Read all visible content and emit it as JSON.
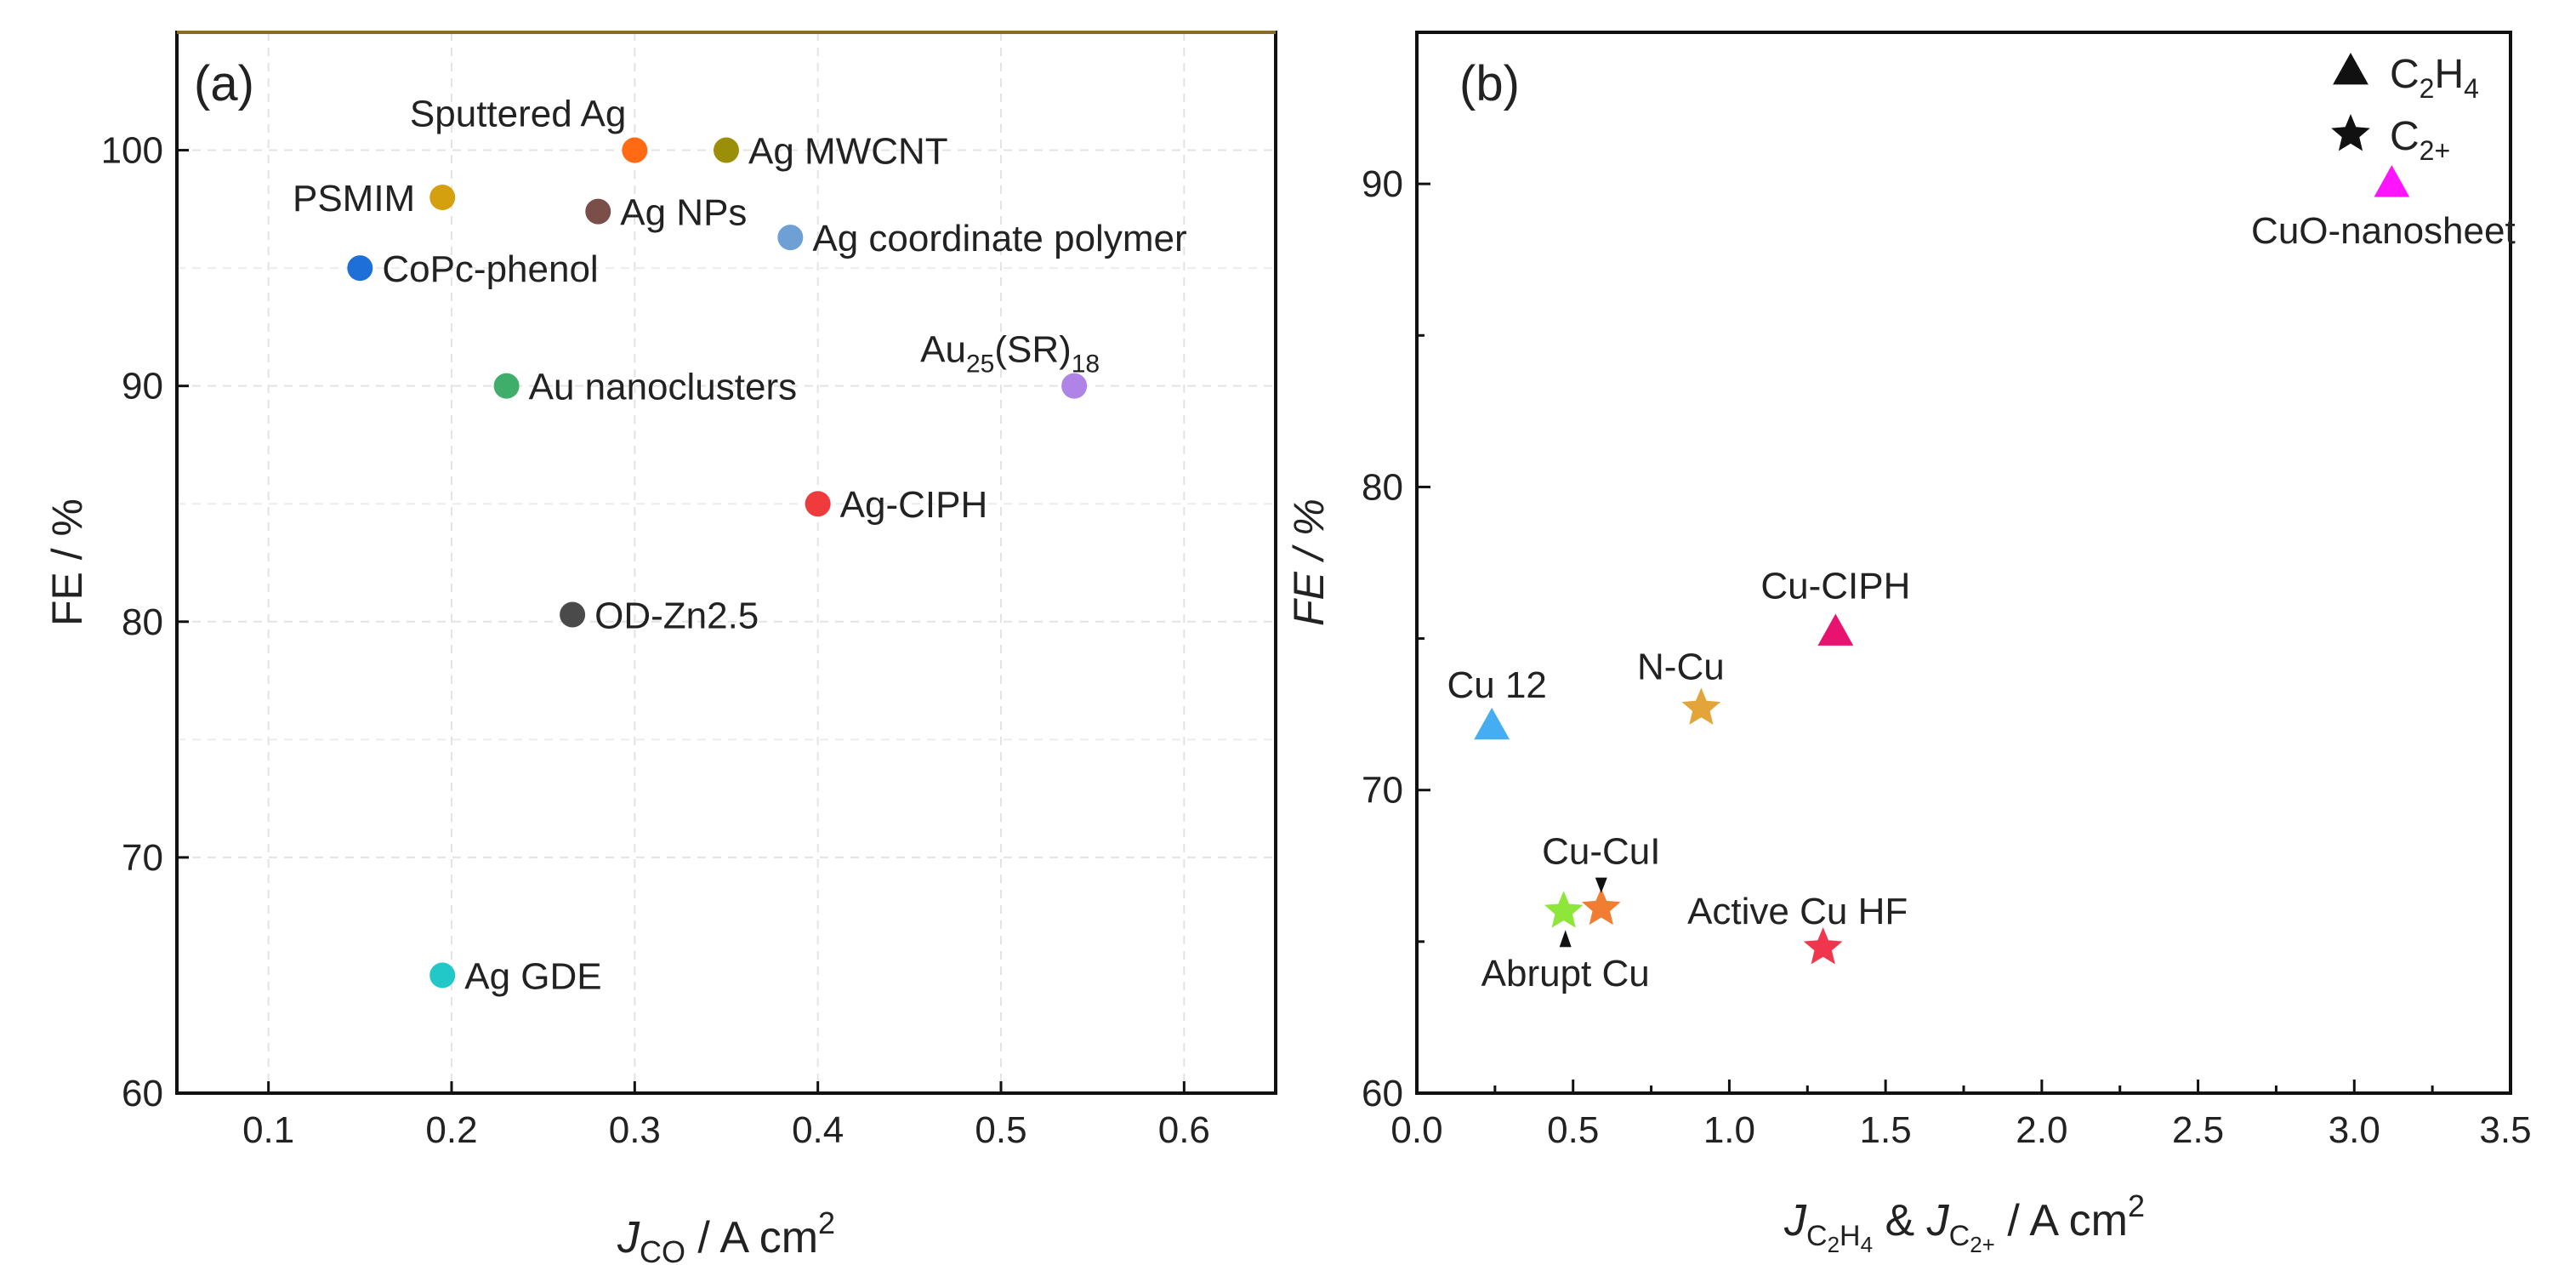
{
  "chart_data": [
    {
      "type": "scatter",
      "panel_label": "(a)",
      "xlabel": {
        "main": "J",
        "sub": "CO",
        "unit": " / A cm",
        "sup": "2"
      },
      "ylabel": "FE / %",
      "xlim": [
        0.05,
        0.65
      ],
      "ylim": [
        60,
        105
      ],
      "xticks": [
        0.1,
        0.2,
        0.3,
        0.4,
        0.5,
        0.6
      ],
      "xtick_labels": [
        "0.1",
        "0.2",
        "0.3",
        "0.4",
        "0.5",
        "0.6"
      ],
      "yticks": [
        60,
        70,
        80,
        90,
        100
      ],
      "ytick_labels": [
        "60",
        "70",
        "80",
        "90",
        "100"
      ],
      "grid": true,
      "points": [
        {
          "name": "Sputtered Ag",
          "x": 0.3,
          "y": 100.0,
          "color": "#ff6a13",
          "label_pos": "top-left"
        },
        {
          "name": "Ag MWCNT",
          "x": 0.35,
          "y": 100.0,
          "color": "#9b8f0a",
          "label_pos": "right"
        },
        {
          "name": "PSMIM",
          "x": 0.195,
          "y": 98.0,
          "color": "#d4a010",
          "label_pos": "left"
        },
        {
          "name": "Ag NPs",
          "x": 0.28,
          "y": 97.4,
          "color": "#7a4f4a",
          "label_pos": "right"
        },
        {
          "name": "Ag coordinate polymer",
          "x": 0.385,
          "y": 96.3,
          "color": "#6ea0d6",
          "label_pos": "right"
        },
        {
          "name": "CoPc-phenol",
          "x": 0.15,
          "y": 95.0,
          "color": "#1f6fd8",
          "label_pos": "right"
        },
        {
          "name": "Au nanoclusters",
          "x": 0.23,
          "y": 90.0,
          "color": "#3fae6a",
          "label_pos": "right"
        },
        {
          "name": "Au25(SR)18",
          "x": 0.54,
          "y": 90.0,
          "color": "#b083e6",
          "label_pos": "top-left",
          "label_base": "Au",
          "label_sub1": "25",
          "label_mid": "(SR)",
          "label_sub2": "18"
        },
        {
          "name": "Ag-CIPH",
          "x": 0.4,
          "y": 85.0,
          "color": "#ef3b3b",
          "label_pos": "right"
        },
        {
          "name": "OD-Zn2.5",
          "x": 0.266,
          "y": 80.3,
          "color": "#4a4a4a",
          "label_pos": "right"
        },
        {
          "name": "Ag GDE",
          "x": 0.195,
          "y": 65.0,
          "color": "#22c7c7",
          "label_pos": "right"
        }
      ]
    },
    {
      "type": "scatter",
      "panel_label": "(b)",
      "xlabel": {
        "j1": "J",
        "s1a": "C",
        "s1b": "2",
        "s1c": "H",
        "s1d": "4",
        "amp": " & ",
        "j2": "J",
        "s2a": "C",
        "s2b": "2+",
        "unit": " / A cm",
        "sup": "2"
      },
      "ylabel": "FE / %",
      "xlim": [
        0.0,
        3.5
      ],
      "ylim": [
        60,
        95
      ],
      "xticks": [
        0.0,
        0.5,
        1.0,
        1.5,
        2.0,
        2.5,
        3.0,
        3.5
      ],
      "xtick_labels": [
        "0.0",
        "0.5",
        "1.0",
        "1.5",
        "2.0",
        "2.5",
        "3.0",
        "3.5"
      ],
      "yticks": [
        60,
        70,
        80,
        90
      ],
      "ytick_labels": [
        "60",
        "70",
        "80",
        "90"
      ],
      "grid": false,
      "legend": {
        "placement": "top-right",
        "entries": [
          {
            "marker": "triangle",
            "base": "C",
            "sub1": "2",
            "mid": "H",
            "sub2": "4"
          },
          {
            "marker": "star",
            "base": "C",
            "sub1": "2+",
            "mid": "",
            "sub2": ""
          }
        ]
      },
      "points": [
        {
          "name": "CuO-nanosheet",
          "x": 3.12,
          "y": 90.0,
          "marker": "triangle",
          "color": "#ff14ff",
          "label_pos": "below"
        },
        {
          "name": "Cu-CIPH",
          "x": 1.34,
          "y": 75.2,
          "marker": "triangle",
          "color": "#e8136f",
          "label_pos": "above"
        },
        {
          "name": "Cu 12",
          "x": 0.24,
          "y": 72.1,
          "marker": "triangle",
          "color": "#45aef2",
          "label_pos": "above"
        },
        {
          "name": "N-Cu",
          "x": 0.91,
          "y": 72.7,
          "marker": "star",
          "color": "#e3a53a",
          "label_pos": "above"
        },
        {
          "name": "Cu-CuI",
          "x": 0.59,
          "y": 66.1,
          "marker": "star",
          "color": "#f07d32",
          "label_pos": "above-arrow"
        },
        {
          "name": "Abrupt Cu",
          "x": 0.47,
          "y": 66.0,
          "marker": "star",
          "color": "#8ee63a",
          "label_pos": "below-arrow"
        },
        {
          "name": "Active Cu HF",
          "x": 1.3,
          "y": 64.8,
          "marker": "star",
          "color": "#f0364d",
          "label_pos": "above"
        }
      ]
    }
  ]
}
